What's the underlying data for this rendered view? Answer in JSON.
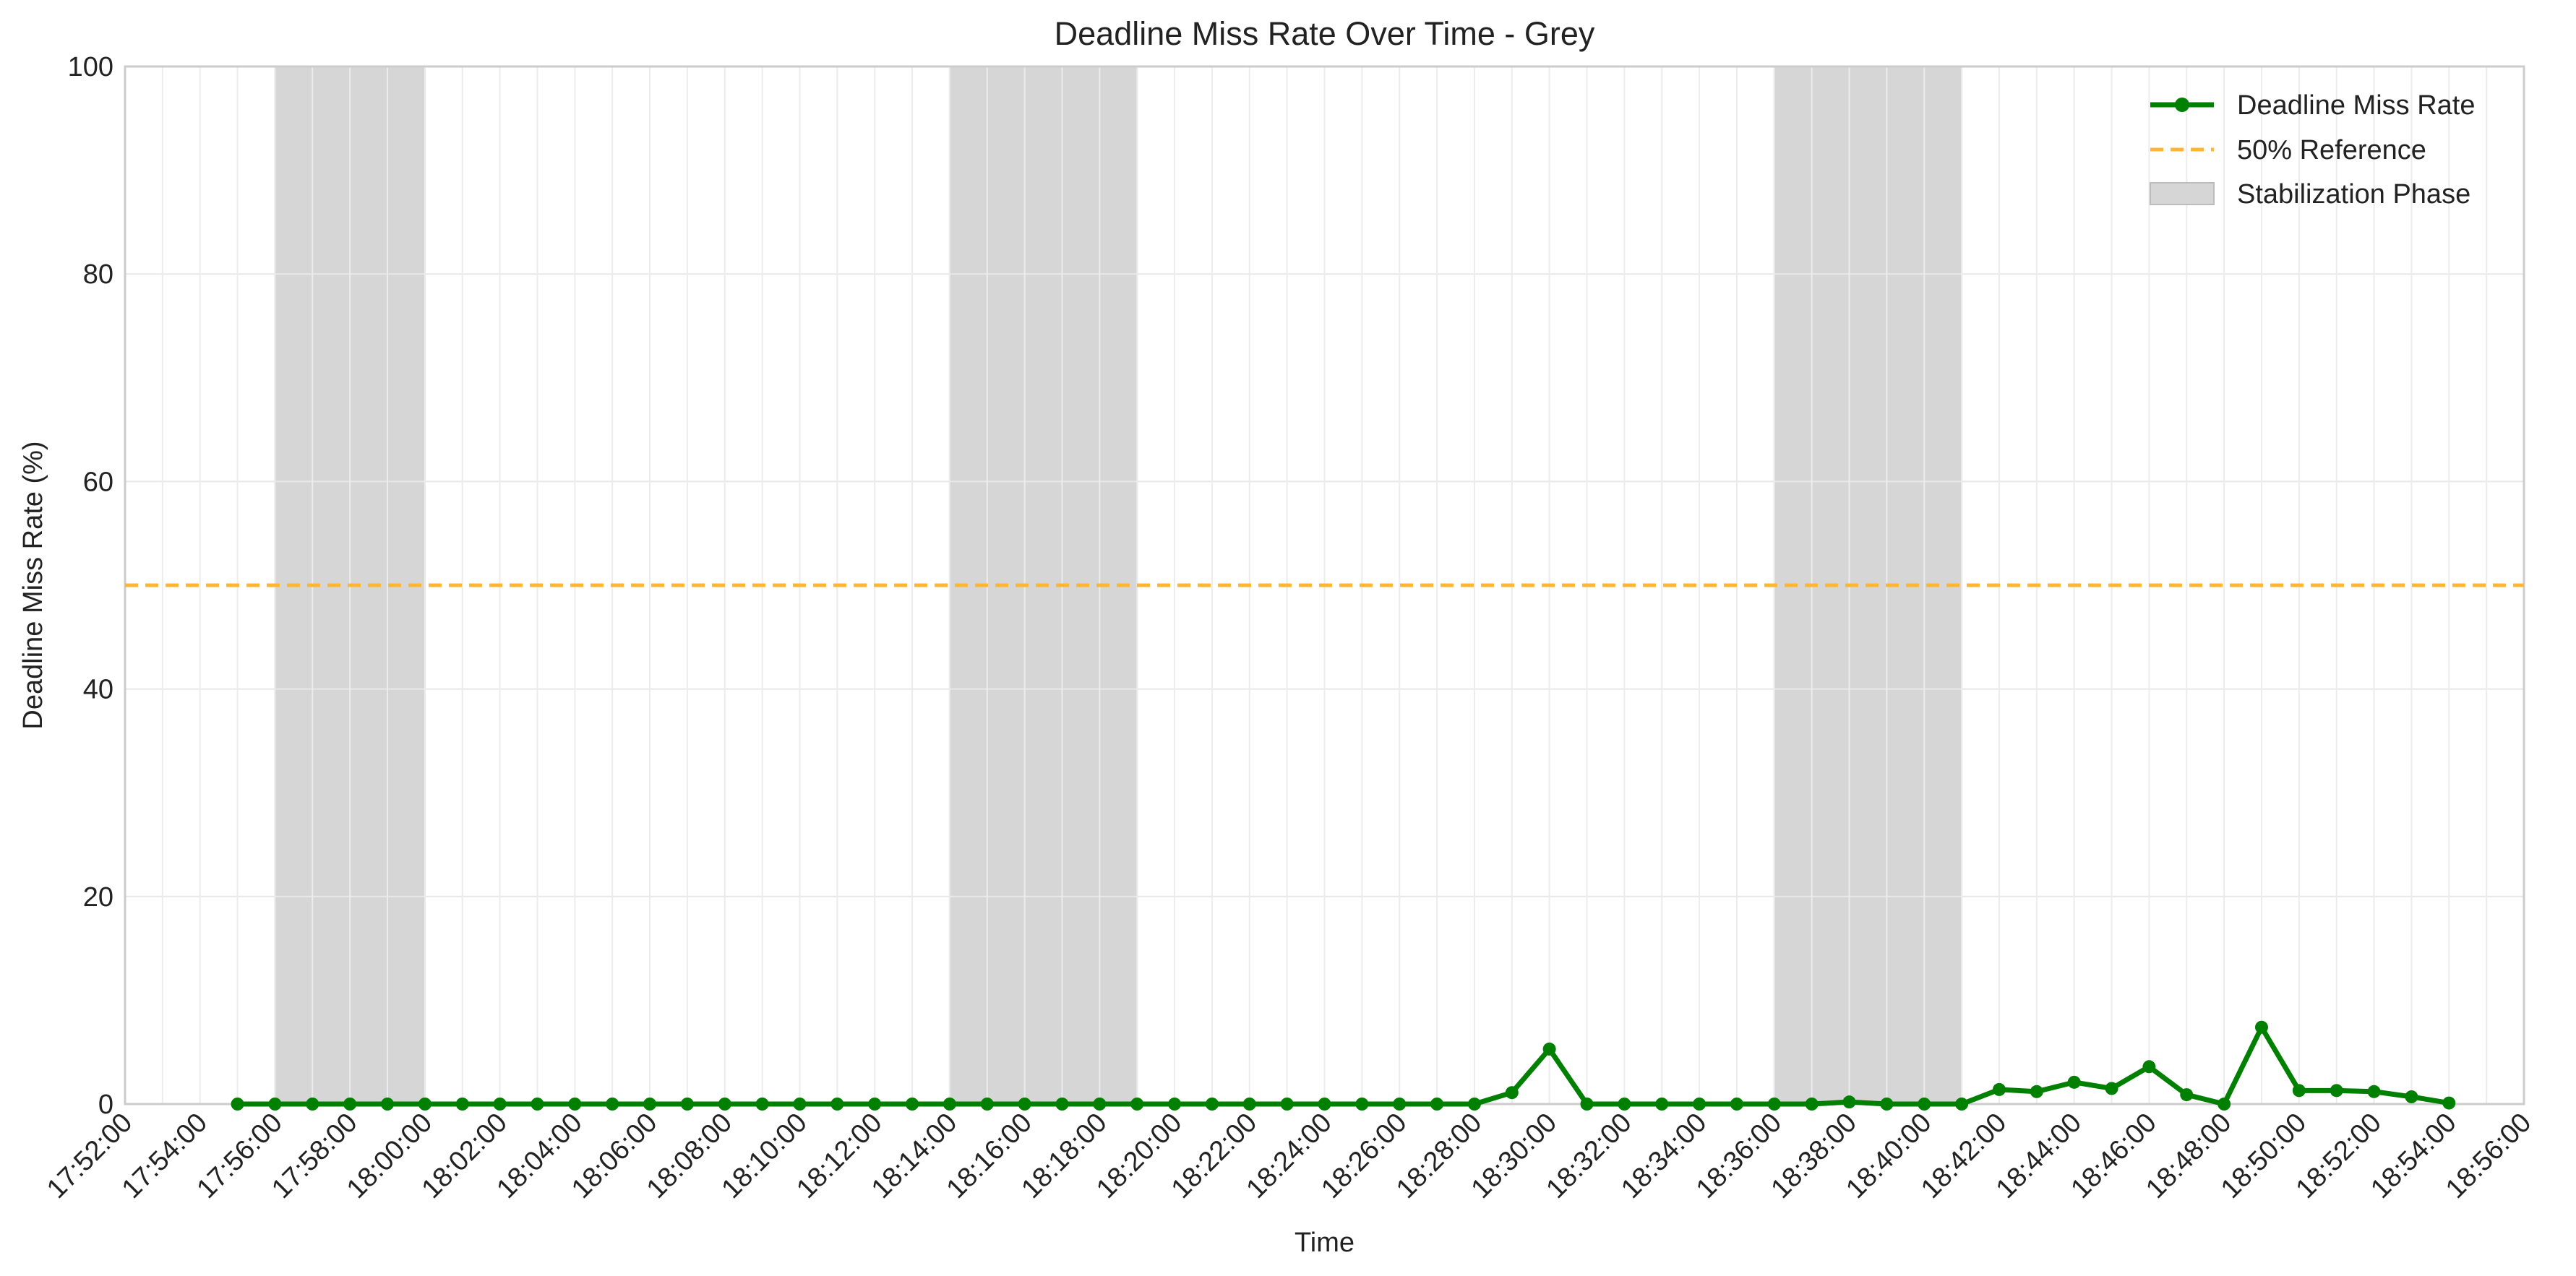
{
  "chart_data": {
    "type": "line",
    "title": "Deadline Miss Rate Over Time - Grey",
    "xlabel": "Time",
    "ylabel": "Deadline Miss Rate (%)",
    "ylim": [
      0,
      100
    ],
    "yticks": [
      0,
      20,
      40,
      60,
      80,
      100
    ],
    "xlim": [
      "17:52:00",
      "18:56:00"
    ],
    "xticks": [
      "17:52:00",
      "17:54:00",
      "17:56:00",
      "17:58:00",
      "18:00:00",
      "18:02:00",
      "18:04:00",
      "18:06:00",
      "18:08:00",
      "18:10:00",
      "18:12:00",
      "18:14:00",
      "18:16:00",
      "18:18:00",
      "18:20:00",
      "18:22:00",
      "18:24:00",
      "18:26:00",
      "18:28:00",
      "18:30:00",
      "18:32:00",
      "18:34:00",
      "18:36:00",
      "18:38:00",
      "18:40:00",
      "18:42:00",
      "18:44:00",
      "18:46:00",
      "18:48:00",
      "18:50:00",
      "18:52:00",
      "18:54:00",
      "18:56:00"
    ],
    "grid": true,
    "legend_position": "top-right",
    "series": [
      {
        "name": "Deadline Miss Rate",
        "color": "#008000",
        "marker": "circle",
        "x": [
          "17:55:00",
          "17:56:00",
          "17:57:00",
          "17:58:00",
          "17:59:00",
          "18:00:00",
          "18:01:00",
          "18:02:00",
          "18:03:00",
          "18:04:00",
          "18:05:00",
          "18:06:00",
          "18:07:00",
          "18:08:00",
          "18:09:00",
          "18:10:00",
          "18:11:00",
          "18:12:00",
          "18:13:00",
          "18:14:00",
          "18:15:00",
          "18:16:00",
          "18:17:00",
          "18:18:00",
          "18:19:00",
          "18:20:00",
          "18:21:00",
          "18:22:00",
          "18:23:00",
          "18:24:00",
          "18:25:00",
          "18:26:00",
          "18:27:00",
          "18:28:00",
          "18:29:00",
          "18:30:00",
          "18:31:00",
          "18:32:00",
          "18:33:00",
          "18:34:00",
          "18:35:00",
          "18:36:00",
          "18:37:00",
          "18:38:00",
          "18:39:00",
          "18:40:00",
          "18:41:00",
          "18:42:00",
          "18:43:00",
          "18:44:00",
          "18:45:00",
          "18:46:00",
          "18:47:00",
          "18:48:00",
          "18:49:00",
          "18:50:00",
          "18:51:00",
          "18:52:00",
          "18:53:00",
          "18:54:00"
        ],
        "y": [
          0,
          0,
          0,
          0,
          0,
          0,
          0,
          0,
          0,
          0,
          0,
          0,
          0,
          0,
          0,
          0,
          0,
          0,
          0,
          0,
          0,
          0,
          0,
          0,
          0,
          0,
          0,
          0,
          0,
          0,
          0,
          0,
          0,
          0,
          1.1,
          5.3,
          0,
          0,
          0,
          0,
          0,
          0,
          0,
          0.2,
          0,
          0,
          0,
          1.4,
          1.2,
          2.1,
          1.5,
          3.6,
          0.9,
          0,
          7.4,
          1.3,
          1.3,
          1.2,
          0.7,
          0.1
        ]
      },
      {
        "name": "50% Reference",
        "color": "#FFB733",
        "style": "dashed",
        "y_constant": 50
      }
    ],
    "shaded_regions": {
      "name": "Stabilization Phase",
      "color": "#D6D6D6",
      "ranges": [
        [
          "17:56:00",
          "18:00:00"
        ],
        [
          "18:14:00",
          "18:19:00"
        ],
        [
          "18:36:00",
          "18:41:00"
        ]
      ]
    }
  }
}
